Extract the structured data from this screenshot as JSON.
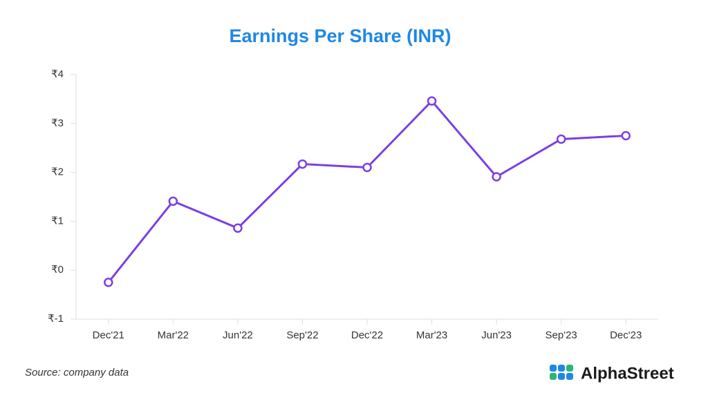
{
  "chart_data": {
    "type": "line",
    "title": "Earnings Per Share (INR)",
    "categories": [
      "Dec'21",
      "Mar'22",
      "Jun'22",
      "Sep'22",
      "Dec'22",
      "Mar'23",
      "Jun'23",
      "Sep'23",
      "Dec'23"
    ],
    "series": [
      {
        "name": "EPS",
        "color": "#7b3fe4",
        "values": [
          -0.25,
          1.41,
          0.86,
          2.17,
          2.1,
          3.46,
          1.91,
          2.68,
          2.75
        ]
      }
    ],
    "ylim": [
      -1,
      4
    ],
    "yticks": [
      {
        "value": -1,
        "label": "₹-1"
      },
      {
        "value": 0,
        "label": "₹0"
      },
      {
        "value": 1,
        "label": "₹1"
      },
      {
        "value": 2,
        "label": "₹2"
      },
      {
        "value": 3,
        "label": "₹3"
      },
      {
        "value": 4,
        "label": "₹4"
      }
    ],
    "grid": false
  },
  "footer": {
    "source": "Source: company data",
    "brand": "AlphaStreet"
  }
}
